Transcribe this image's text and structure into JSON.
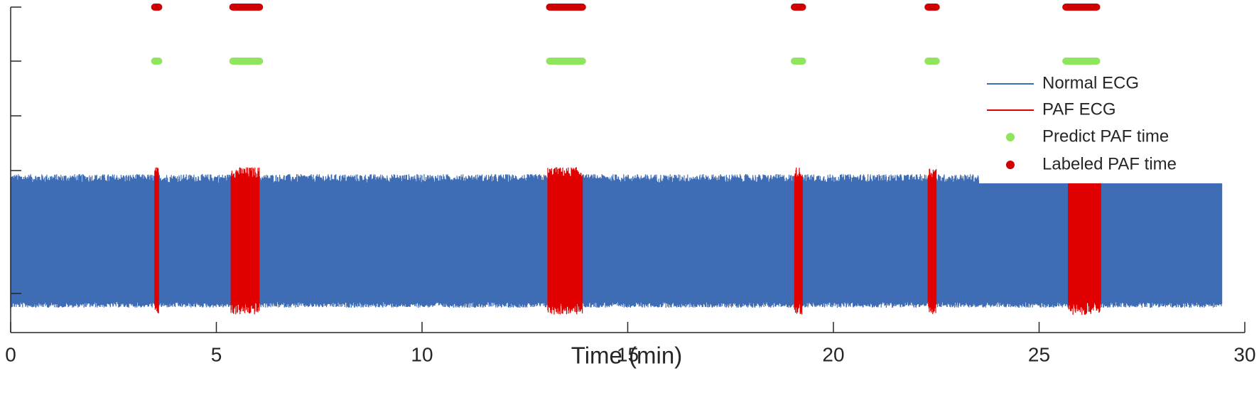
{
  "chart_data": {
    "type": "line",
    "xlabel": "Time (min)",
    "ylabel": "",
    "xlim": [
      0,
      30
    ],
    "x_ticks": [
      0,
      5,
      10,
      15,
      20,
      25,
      30
    ],
    "x_tick_labels": [
      "0",
      "5",
      "10",
      "15",
      "20",
      "25",
      "30"
    ],
    "recording_end": 29.45,
    "legend": {
      "position": "right",
      "entries": [
        "Normal ECG",
        "PAF ECG",
        "Predict PAF time",
        "Labeled PAF time"
      ]
    },
    "colors": {
      "normal_ecg": "#3E6DB5",
      "paf_ecg": "#E00000",
      "predict": "#8FE65C",
      "labeled": "#D00000",
      "axis": "#262626"
    },
    "series": [
      {
        "name": "Normal ECG",
        "kind": "signal"
      },
      {
        "name": "PAF ECG",
        "kind": "signal_segments",
        "intervals": [
          [
            3.5,
            3.6
          ],
          [
            5.35,
            6.05
          ],
          [
            13.05,
            13.9
          ],
          [
            19.05,
            19.25
          ],
          [
            22.3,
            22.5
          ],
          [
            25.7,
            26.5
          ]
        ]
      },
      {
        "name": "Predict PAF time",
        "kind": "event_bar",
        "intervals": [
          [
            3.5,
            3.6
          ],
          [
            5.4,
            6.05
          ],
          [
            13.1,
            13.9
          ],
          [
            19.05,
            19.25
          ],
          [
            22.3,
            22.5
          ],
          [
            25.65,
            26.4
          ]
        ]
      },
      {
        "name": "Labeled PAF time",
        "kind": "event_bar",
        "intervals": [
          [
            3.5,
            3.6
          ],
          [
            5.4,
            6.05
          ],
          [
            13.1,
            13.9
          ],
          [
            19.05,
            19.25
          ],
          [
            22.3,
            22.5
          ],
          [
            25.65,
            26.4
          ]
        ]
      }
    ]
  }
}
